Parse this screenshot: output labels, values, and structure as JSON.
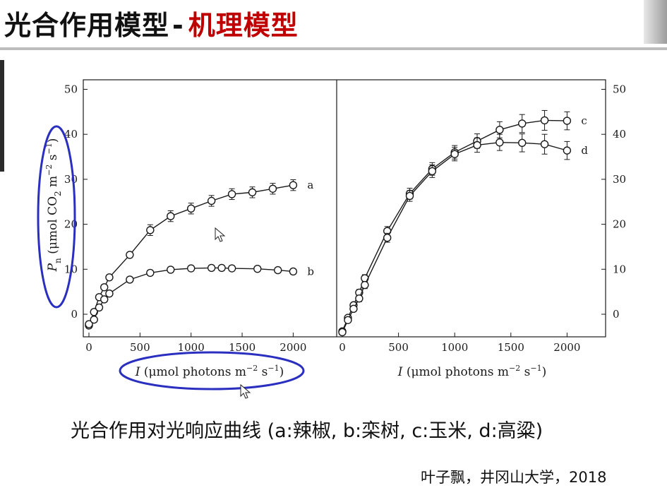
{
  "slide": {
    "title_main": "光合作用模型",
    "title_separator": "-",
    "title_accent": "机理模型",
    "caption": "光合作用对光响应曲线 (a:辣椒, b:栾树, c:玉米, d:高粱)",
    "credit": "叶子飘，井冈山大学，2018",
    "colors": {
      "accent": "#c00000",
      "highlight_ellipse": "#2a2fbf",
      "ink": "#111111"
    }
  },
  "chart_data": [
    {
      "type": "line",
      "ylabel": "P n (μmol CO2 m−2 s−1)",
      "xlabel": "I (μmol photons m−2 s−1)",
      "xlim": [
        -50,
        2200
      ],
      "ylim": [
        -5,
        52
      ],
      "x_ticks": [
        "0",
        "500",
        "1000",
        "1500",
        "2000"
      ],
      "y_ticks": [
        "0",
        "10",
        "20",
        "30",
        "40",
        "50"
      ],
      "y_axis_side": "left",
      "series": [
        {
          "name": "a",
          "x": [
            0,
            50,
            100,
            150,
            200,
            400,
            600,
            800,
            1000,
            1200,
            1400,
            1600,
            1800,
            2000
          ],
          "y": [
            -2.5,
            0.5,
            3.8,
            6,
            8.2,
            13.2,
            18.7,
            21.8,
            23.5,
            25.2,
            26.7,
            27.1,
            27.9,
            28.7
          ]
        },
        {
          "name": "b",
          "x": [
            0,
            50,
            100,
            150,
            200,
            400,
            600,
            800,
            1000,
            1200,
            1300,
            1400,
            1650,
            1850,
            2000
          ],
          "y": [
            -2.2,
            -1.2,
            1.5,
            3.3,
            4.6,
            7.7,
            9.2,
            9.9,
            10.2,
            10.3,
            10.3,
            10.2,
            10.1,
            9.8,
            9.5
          ]
        }
      ]
    },
    {
      "type": "line",
      "xlabel": "I (μmol photons m−2 s−1)",
      "xlim": [
        -50,
        2200
      ],
      "ylim": [
        -5,
        52
      ],
      "x_ticks": [
        "0",
        "500",
        "1000",
        "1500",
        "2000"
      ],
      "y_ticks": [
        "0",
        "10",
        "20",
        "30",
        "40",
        "50"
      ],
      "y_axis_side": "right",
      "series": [
        {
          "name": "c",
          "x": [
            0,
            50,
            100,
            150,
            200,
            400,
            600,
            800,
            1000,
            1200,
            1400,
            1600,
            1800,
            2000
          ],
          "y": [
            -3.8,
            -0.8,
            2,
            4.8,
            8,
            18.5,
            26.8,
            32.3,
            36,
            38.5,
            41,
            42.4,
            43.1,
            43
          ],
          "error": [
            0.4,
            0.5,
            0.6,
            0.7,
            0.8,
            1,
            1.2,
            1.4,
            1.5,
            1.6,
            1.8,
            2,
            2.2,
            2
          ]
        },
        {
          "name": "d",
          "x": [
            0,
            50,
            100,
            150,
            200,
            400,
            600,
            800,
            1000,
            1200,
            1400,
            1600,
            1800,
            2000
          ],
          "y": [
            -4,
            -1.3,
            1.2,
            3.5,
            6.5,
            17,
            26.3,
            31.8,
            35.6,
            37.6,
            38.2,
            38.1,
            37.8,
            36.4
          ],
          "error": [
            0.4,
            0.5,
            0.6,
            0.7,
            0.8,
            1,
            1.2,
            1.4,
            1.5,
            1.6,
            1.8,
            2,
            2.2,
            2
          ]
        }
      ]
    }
  ]
}
